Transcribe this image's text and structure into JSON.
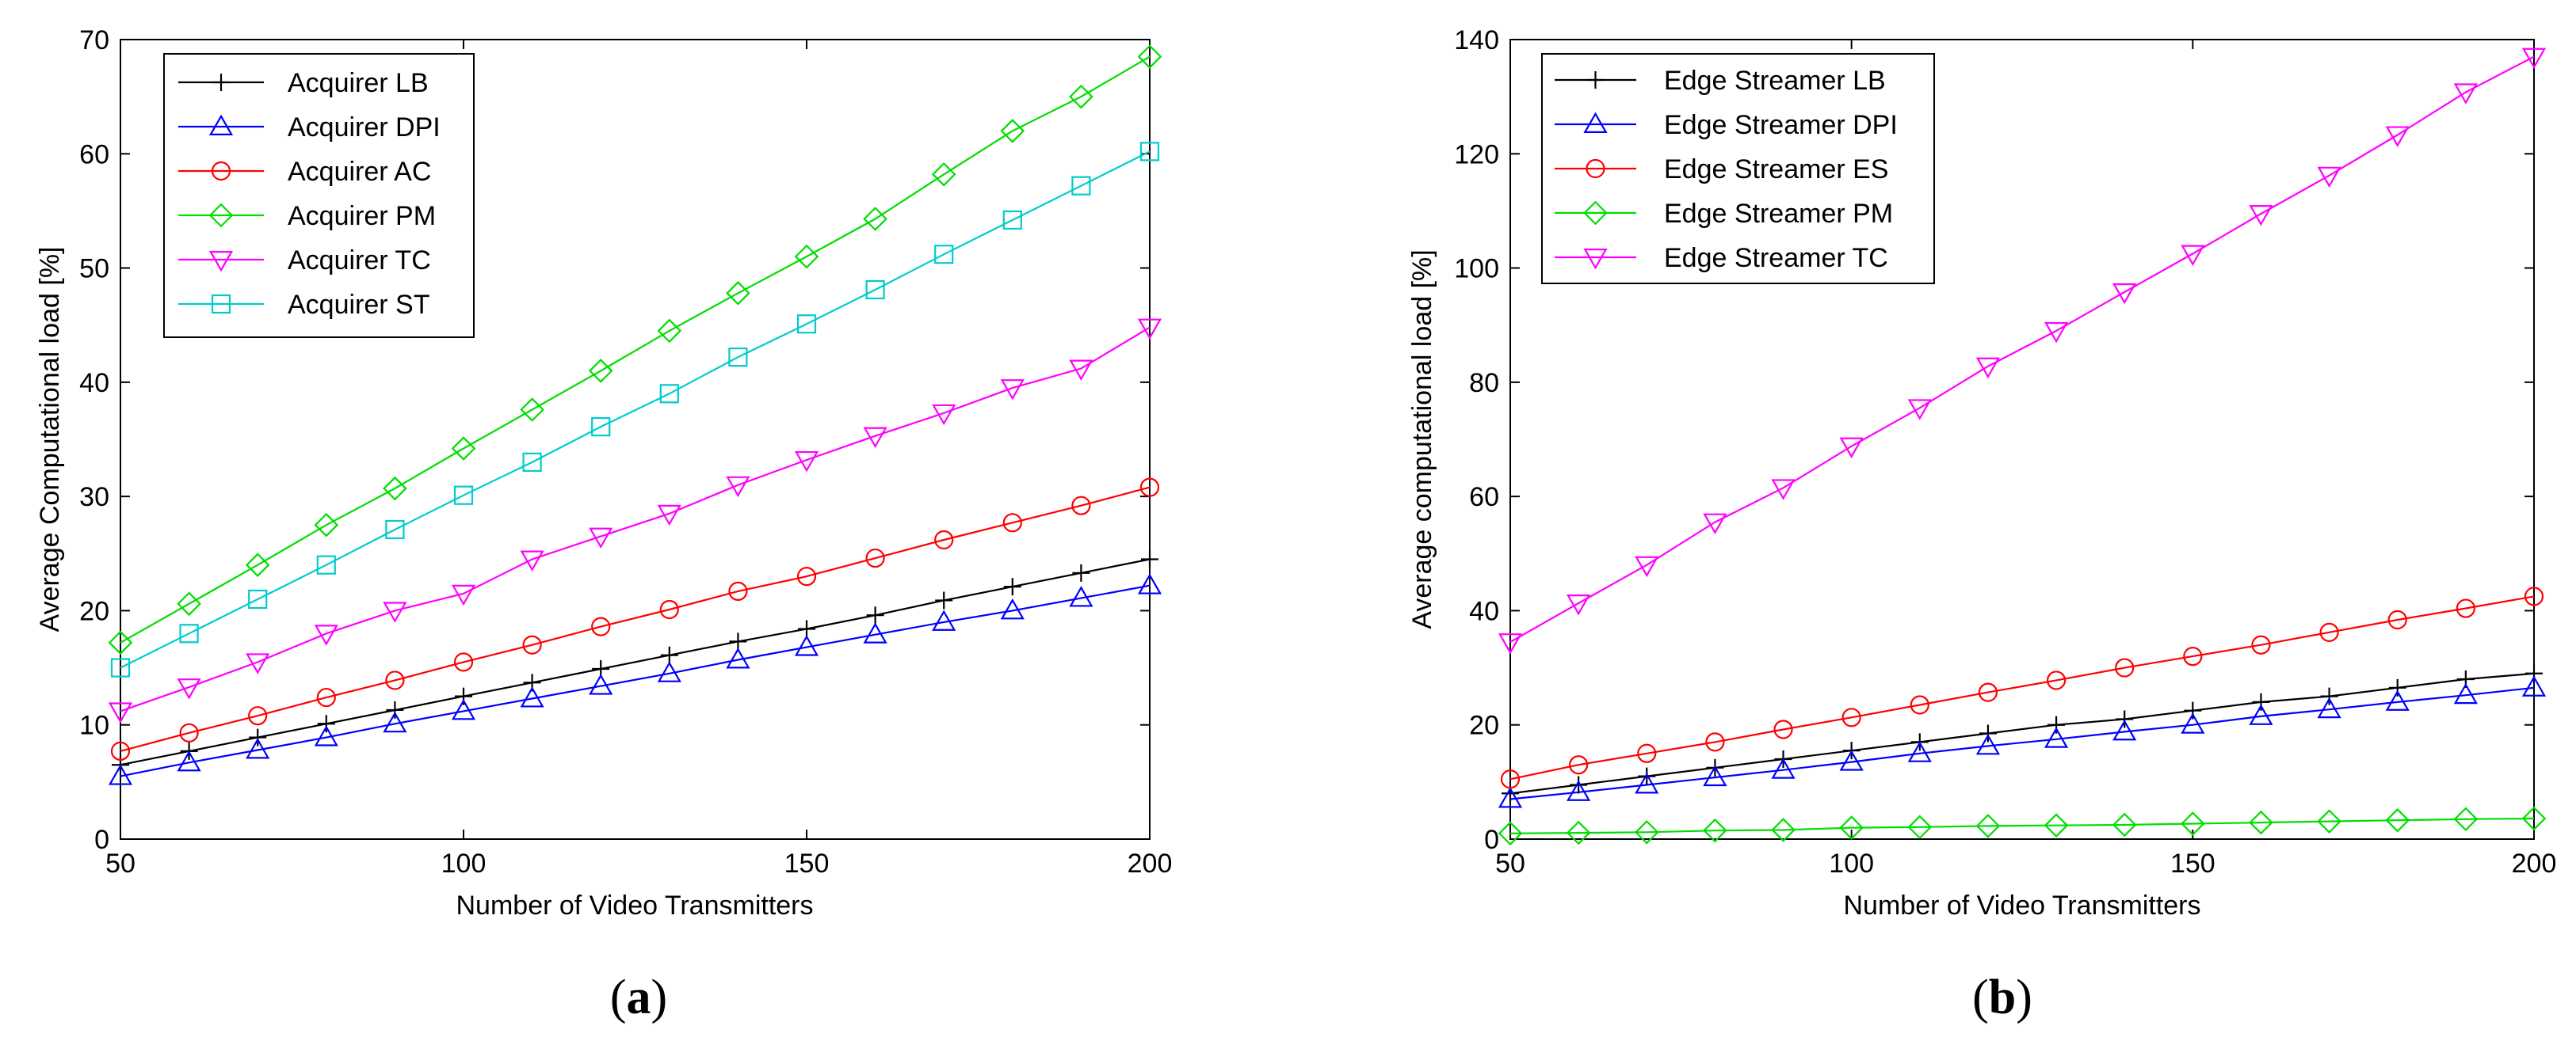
{
  "chart_data": [
    {
      "type": "line",
      "caption_open": "(",
      "caption_letter": "a",
      "caption_close": ")",
      "title": "",
      "xlabel": "Number of Video Transmitters",
      "ylabel": "Average Computational load [%]",
      "xlim": [
        50,
        200
      ],
      "ylim": [
        0,
        70
      ],
      "xticks": [
        50,
        100,
        150,
        200
      ],
      "yticks": [
        0,
        10,
        20,
        30,
        40,
        50,
        60,
        70
      ],
      "legend_position": "top-left",
      "x": [
        50,
        60,
        70,
        80,
        90,
        100,
        110,
        120,
        130,
        140,
        150,
        160,
        170,
        180,
        190,
        200
      ],
      "series": [
        {
          "name": "Acquirer LB",
          "color": "#000000",
          "marker": "plus",
          "values": [
            6.5,
            7.7,
            8.9,
            10.1,
            11.3,
            12.5,
            13.7,
            14.9,
            16.1,
            17.3,
            18.4,
            19.6,
            20.9,
            22.1,
            23.3,
            24.5
          ]
        },
        {
          "name": "Acquirer DPI",
          "color": "#0000ff",
          "marker": "triangle-up",
          "values": [
            5.5,
            6.7,
            7.8,
            8.9,
            10.1,
            11.2,
            12.3,
            13.4,
            14.5,
            15.7,
            16.8,
            17.9,
            19.0,
            20.0,
            21.1,
            22.2
          ]
        },
        {
          "name": "Acquirer AC",
          "color": "#ff0000",
          "marker": "circle",
          "values": [
            7.7,
            9.3,
            10.8,
            12.4,
            13.9,
            15.5,
            17.0,
            18.6,
            20.1,
            21.7,
            23.0,
            24.6,
            26.2,
            27.7,
            29.2,
            30.8
          ]
        },
        {
          "name": "Acquirer PM",
          "color": "#00dd00",
          "marker": "diamond",
          "values": [
            17.2,
            20.6,
            24.0,
            27.5,
            30.7,
            34.2,
            37.6,
            41.0,
            44.5,
            47.8,
            51.0,
            54.3,
            58.2,
            62.0,
            65.0,
            68.5
          ]
        },
        {
          "name": "Acquirer TC",
          "color": "#ff00ff",
          "marker": "triangle-down",
          "values": [
            11.2,
            13.3,
            15.5,
            18.0,
            20.0,
            21.5,
            24.5,
            26.5,
            28.5,
            31.0,
            33.2,
            35.3,
            37.3,
            39.5,
            41.2,
            44.8
          ]
        },
        {
          "name": "Acquirer ST",
          "color": "#00cccc",
          "marker": "square",
          "values": [
            15.0,
            18.0,
            21.0,
            24.0,
            27.1,
            30.1,
            33.0,
            36.1,
            39.0,
            42.2,
            45.1,
            48.1,
            51.2,
            54.2,
            57.2,
            60.2
          ]
        }
      ]
    },
    {
      "type": "line",
      "caption_open": "(",
      "caption_letter": "b",
      "caption_close": ")",
      "title": "",
      "xlabel": "Number of Video Transmitters",
      "ylabel": "Average computational load [%]",
      "xlim": [
        50,
        200
      ],
      "ylim": [
        0,
        140
      ],
      "xticks": [
        50,
        100,
        150,
        200
      ],
      "yticks": [
        0,
        20,
        40,
        60,
        80,
        100,
        120,
        140
      ],
      "legend_position": "top-left",
      "x": [
        50,
        60,
        70,
        80,
        90,
        100,
        110,
        120,
        130,
        140,
        150,
        160,
        170,
        180,
        190,
        200
      ],
      "series": [
        {
          "name": "Edge Streamer LB",
          "color": "#000000",
          "marker": "plus",
          "values": [
            8.0,
            9.5,
            11.0,
            12.5,
            14.0,
            15.5,
            17.0,
            18.5,
            20.0,
            21.0,
            22.5,
            24.0,
            25.0,
            26.5,
            28.0,
            29.0
          ]
        },
        {
          "name": "Edge Streamer DPI",
          "color": "#0000ff",
          "marker": "triangle-up",
          "values": [
            7.0,
            8.2,
            9.5,
            10.8,
            12.1,
            13.5,
            15.0,
            16.3,
            17.5,
            18.8,
            20.0,
            21.5,
            22.7,
            24.0,
            25.2,
            26.5
          ]
        },
        {
          "name": "Edge Streamer ES",
          "color": "#ff0000",
          "marker": "circle",
          "values": [
            10.5,
            13.0,
            15.0,
            17.0,
            19.2,
            21.3,
            23.5,
            25.7,
            27.8,
            30.0,
            32.0,
            34.0,
            36.2,
            38.4,
            40.4,
            42.5
          ]
        },
        {
          "name": "Edge Streamer PM",
          "color": "#00dd00",
          "marker": "diamond",
          "values": [
            1.0,
            1.1,
            1.2,
            1.5,
            1.6,
            2.0,
            2.1,
            2.3,
            2.4,
            2.5,
            2.7,
            2.9,
            3.1,
            3.3,
            3.5,
            3.6
          ]
        },
        {
          "name": "Edge Streamer TC",
          "color": "#ff00ff",
          "marker": "triangle-down",
          "values": [
            34.5,
            41.3,
            48.0,
            55.5,
            61.5,
            68.8,
            75.5,
            82.8,
            89.0,
            95.8,
            102.5,
            109.5,
            116.2,
            123.3,
            130.8,
            137.0
          ]
        }
      ]
    }
  ]
}
